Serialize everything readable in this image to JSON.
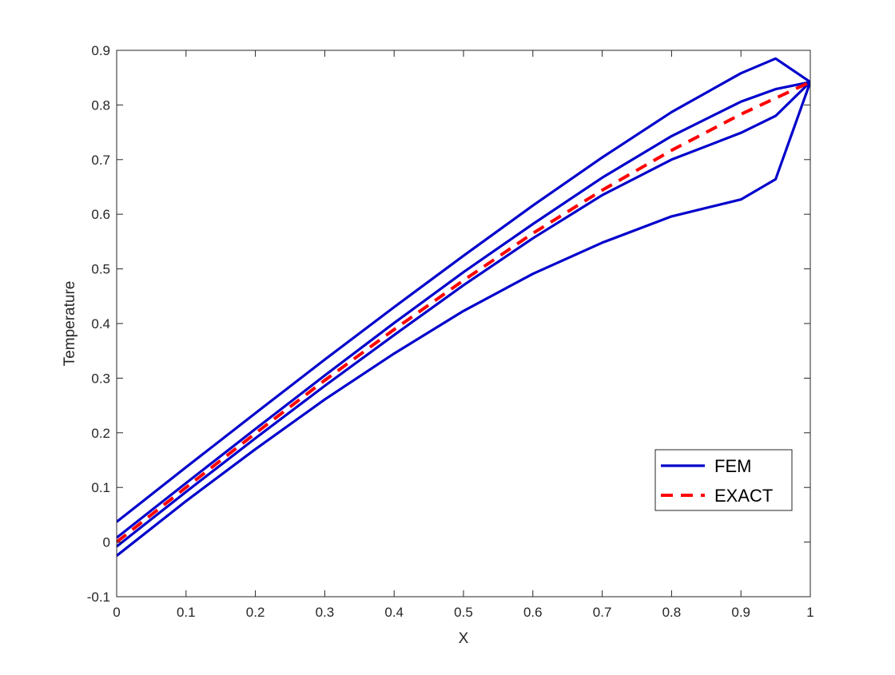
{
  "chart_data": {
    "type": "line",
    "title": "",
    "xlabel": "X",
    "ylabel": "Temperature",
    "xlim": [
      0,
      1
    ],
    "ylim": [
      -0.1,
      0.9
    ],
    "xticks": [
      0,
      0.1,
      0.2,
      0.3,
      0.4,
      0.5,
      0.6,
      0.7,
      0.8,
      0.9,
      1
    ],
    "xtick_labels": [
      "0",
      "0.1",
      "0.2",
      "0.3",
      "0.4",
      "0.5",
      "0.6",
      "0.7",
      "0.8",
      "0.9",
      "1"
    ],
    "yticks": [
      -0.1,
      0,
      0.1,
      0.2,
      0.3,
      0.4,
      0.5,
      0.6,
      0.7,
      0.8,
      0.9
    ],
    "ytick_labels": [
      "-0.1",
      "0",
      "0.1",
      "0.2",
      "0.3",
      "0.4",
      "0.5",
      "0.6",
      "0.7",
      "0.8",
      "0.9"
    ],
    "grid": false,
    "legend_position": "lower-right",
    "legend": [
      {
        "label": "FEM",
        "color": "#0000CC",
        "style": "solid"
      },
      {
        "label": "EXACT",
        "color": "#FF0000",
        "style": "dashed"
      }
    ],
    "series": [
      {
        "group": "FEM",
        "color": "#0000CC",
        "style": "solid",
        "x": [
          0,
          0.1,
          0.2,
          0.3,
          0.4,
          0.5,
          0.6,
          0.7,
          0.8,
          0.9,
          0.95,
          1
        ],
        "y": [
          0.037,
          0.137,
          0.236,
          0.334,
          0.43,
          0.524,
          0.616,
          0.704,
          0.787,
          0.858,
          0.885,
          0.842
        ]
      },
      {
        "group": "FEM",
        "color": "#0000CC",
        "style": "solid",
        "x": [
          0,
          0.1,
          0.2,
          0.3,
          0.4,
          0.5,
          0.6,
          0.7,
          0.8,
          0.9,
          0.95,
          1
        ],
        "y": [
          0.008,
          0.108,
          0.207,
          0.305,
          0.401,
          0.494,
          0.582,
          0.667,
          0.743,
          0.806,
          0.829,
          0.842
        ]
      },
      {
        "group": "FEM",
        "color": "#0000CC",
        "style": "solid",
        "x": [
          0,
          0.1,
          0.2,
          0.3,
          0.4,
          0.5,
          0.6,
          0.7,
          0.8,
          0.9,
          0.95,
          1
        ],
        "y": [
          -0.008,
          0.092,
          0.19,
          0.286,
          0.379,
          0.47,
          0.556,
          0.635,
          0.7,
          0.749,
          0.78,
          0.842
        ]
      },
      {
        "group": "FEM",
        "color": "#0000CC",
        "style": "solid",
        "x": [
          0,
          0.1,
          0.2,
          0.3,
          0.4,
          0.5,
          0.6,
          0.7,
          0.8,
          0.9,
          0.95,
          1
        ],
        "y": [
          -0.025,
          0.075,
          0.17,
          0.261,
          0.345,
          0.423,
          0.491,
          0.548,
          0.596,
          0.627,
          0.664,
          0.842
        ]
      },
      {
        "group": "EXACT",
        "color": "#FF0000",
        "style": "dashed",
        "x": [
          0,
          0.1,
          0.2,
          0.3,
          0.4,
          0.5,
          0.6,
          0.7,
          0.8,
          0.9,
          1
        ],
        "y": [
          0,
          0.1,
          0.199,
          0.296,
          0.389,
          0.479,
          0.565,
          0.644,
          0.717,
          0.783,
          0.842
        ]
      }
    ]
  }
}
